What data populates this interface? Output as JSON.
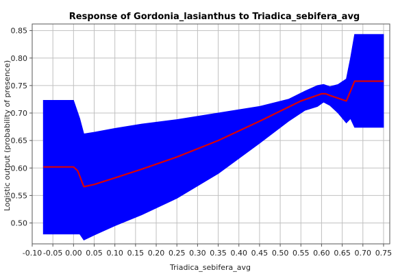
{
  "chart_data": {
    "type": "area",
    "title": "Response of Gordonia_lasianthus to Triadica_sebifera_avg",
    "xlabel": "Triadica_sebifera_avg",
    "ylabel": "Logistic output (probability of presence)",
    "xlim": [
      -0.1,
      0.765
    ],
    "ylim": [
      0.462,
      0.862
    ],
    "x_ticks": [
      "-0.10",
      "-0.05",
      "0.00",
      "0.05",
      "0.10",
      "0.15",
      "0.20",
      "0.25",
      "0.30",
      "0.35",
      "0.40",
      "0.45",
      "0.50",
      "0.55",
      "0.60",
      "0.65",
      "0.70",
      "0.75"
    ],
    "x_tick_values": [
      -0.1,
      -0.05,
      0.0,
      0.05,
      0.1,
      0.15,
      0.2,
      0.25,
      0.3,
      0.35,
      0.4,
      0.45,
      0.5,
      0.55,
      0.6,
      0.65,
      0.7,
      0.75
    ],
    "y_ticks": [
      "0.50",
      "0.55",
      "0.60",
      "0.65",
      "0.70",
      "0.75",
      "0.80",
      "0.85"
    ],
    "y_tick_values": [
      0.5,
      0.55,
      0.6,
      0.65,
      0.7,
      0.75,
      0.8,
      0.85
    ],
    "grid": true,
    "colors": {
      "band": "#0000ff",
      "mean_line": "#dd0000"
    },
    "band": {
      "x": [
        -0.073,
        0.0,
        0.015,
        0.025,
        0.05,
        0.1,
        0.165,
        0.25,
        0.35,
        0.45,
        0.52,
        0.56,
        0.59,
        0.605,
        0.62,
        0.64,
        0.66,
        0.67,
        0.68,
        0.75
      ],
      "upper": [
        0.723,
        0.723,
        0.69,
        0.662,
        0.665,
        0.672,
        0.68,
        0.688,
        0.7,
        0.712,
        0.725,
        0.74,
        0.75,
        0.752,
        0.748,
        0.752,
        0.762,
        0.8,
        0.843,
        0.843
      ],
      "lower": [
        0.48,
        0.48,
        0.48,
        0.469,
        0.478,
        0.495,
        0.515,
        0.545,
        0.59,
        0.645,
        0.685,
        0.705,
        0.712,
        0.72,
        0.714,
        0.7,
        0.682,
        0.69,
        0.674,
        0.674
      ]
    },
    "series": [
      {
        "values_x": [
          -0.073,
          -0.05,
          0.0,
          0.01,
          0.025,
          0.05,
          0.1,
          0.165,
          0.25,
          0.35,
          0.45,
          0.55,
          0.6,
          0.61,
          0.62,
          0.66,
          0.67,
          0.68,
          0.75
        ],
        "values_y": [
          0.602,
          0.602,
          0.602,
          0.595,
          0.566,
          0.57,
          0.582,
          0.598,
          0.62,
          0.65,
          0.685,
          0.722,
          0.735,
          0.735,
          0.732,
          0.722,
          0.74,
          0.758,
          0.758
        ]
      }
    ]
  }
}
